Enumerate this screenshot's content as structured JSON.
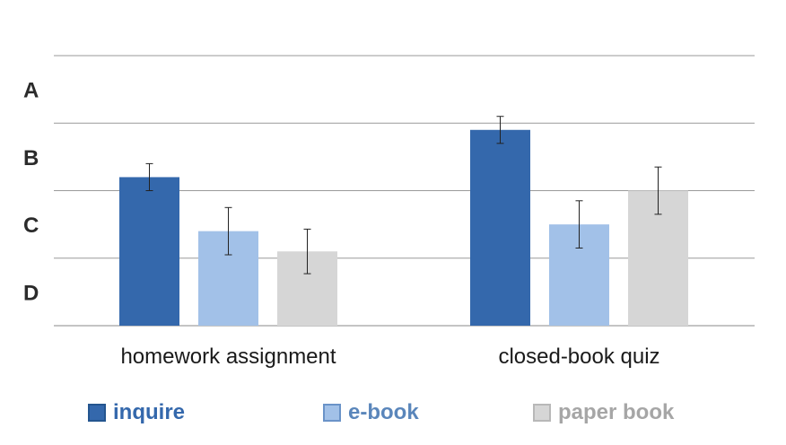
{
  "chart_data": {
    "type": "bar",
    "title": "",
    "xlabel": "",
    "ylabel": "",
    "y_tick_labels": [
      "A",
      "B",
      "C",
      "D"
    ],
    "categories": [
      "homework assignment",
      "closed-book quiz"
    ],
    "series": [
      {
        "name": "inquire",
        "color": "#3468ac",
        "values": [
          2.2,
          2.9
        ],
        "error": [
          0.2,
          0.2
        ]
      },
      {
        "name": "e-book",
        "color": "#a2c1e8",
        "values": [
          1.4,
          1.5
        ],
        "error": [
          0.35,
          0.35
        ]
      },
      {
        "name": "paper book",
        "color": "#d6d6d6",
        "values": [
          1.1,
          2.0
        ],
        "error": [
          0.33,
          0.35
        ]
      }
    ],
    "ylim": [
      0,
      4
    ],
    "grid": true,
    "legend_position": "bottom"
  }
}
